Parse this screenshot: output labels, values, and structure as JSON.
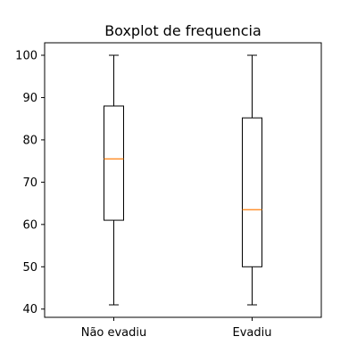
{
  "chart_data": {
    "type": "boxplot",
    "title": "Boxplot de frequencia",
    "xlabel": "",
    "ylabel": "",
    "categories": [
      "Não evadiu",
      "Evadiu"
    ],
    "boxes": [
      {
        "category": "Não evadiu",
        "whisker_low": 41,
        "q1": 61,
        "median": 75.5,
        "q3": 88,
        "whisker_high": 100
      },
      {
        "category": "Evadiu",
        "whisker_low": 41,
        "q1": 50,
        "median": 63.5,
        "q3": 85.2,
        "whisker_high": 100
      }
    ],
    "ylim": [
      38.05,
      102.95
    ],
    "yticks": [
      40,
      50,
      60,
      70,
      80,
      90,
      100
    ],
    "grid": false,
    "colors": {
      "box": "#000000",
      "median": "#ff7f0e",
      "whisker": "#000000"
    }
  }
}
